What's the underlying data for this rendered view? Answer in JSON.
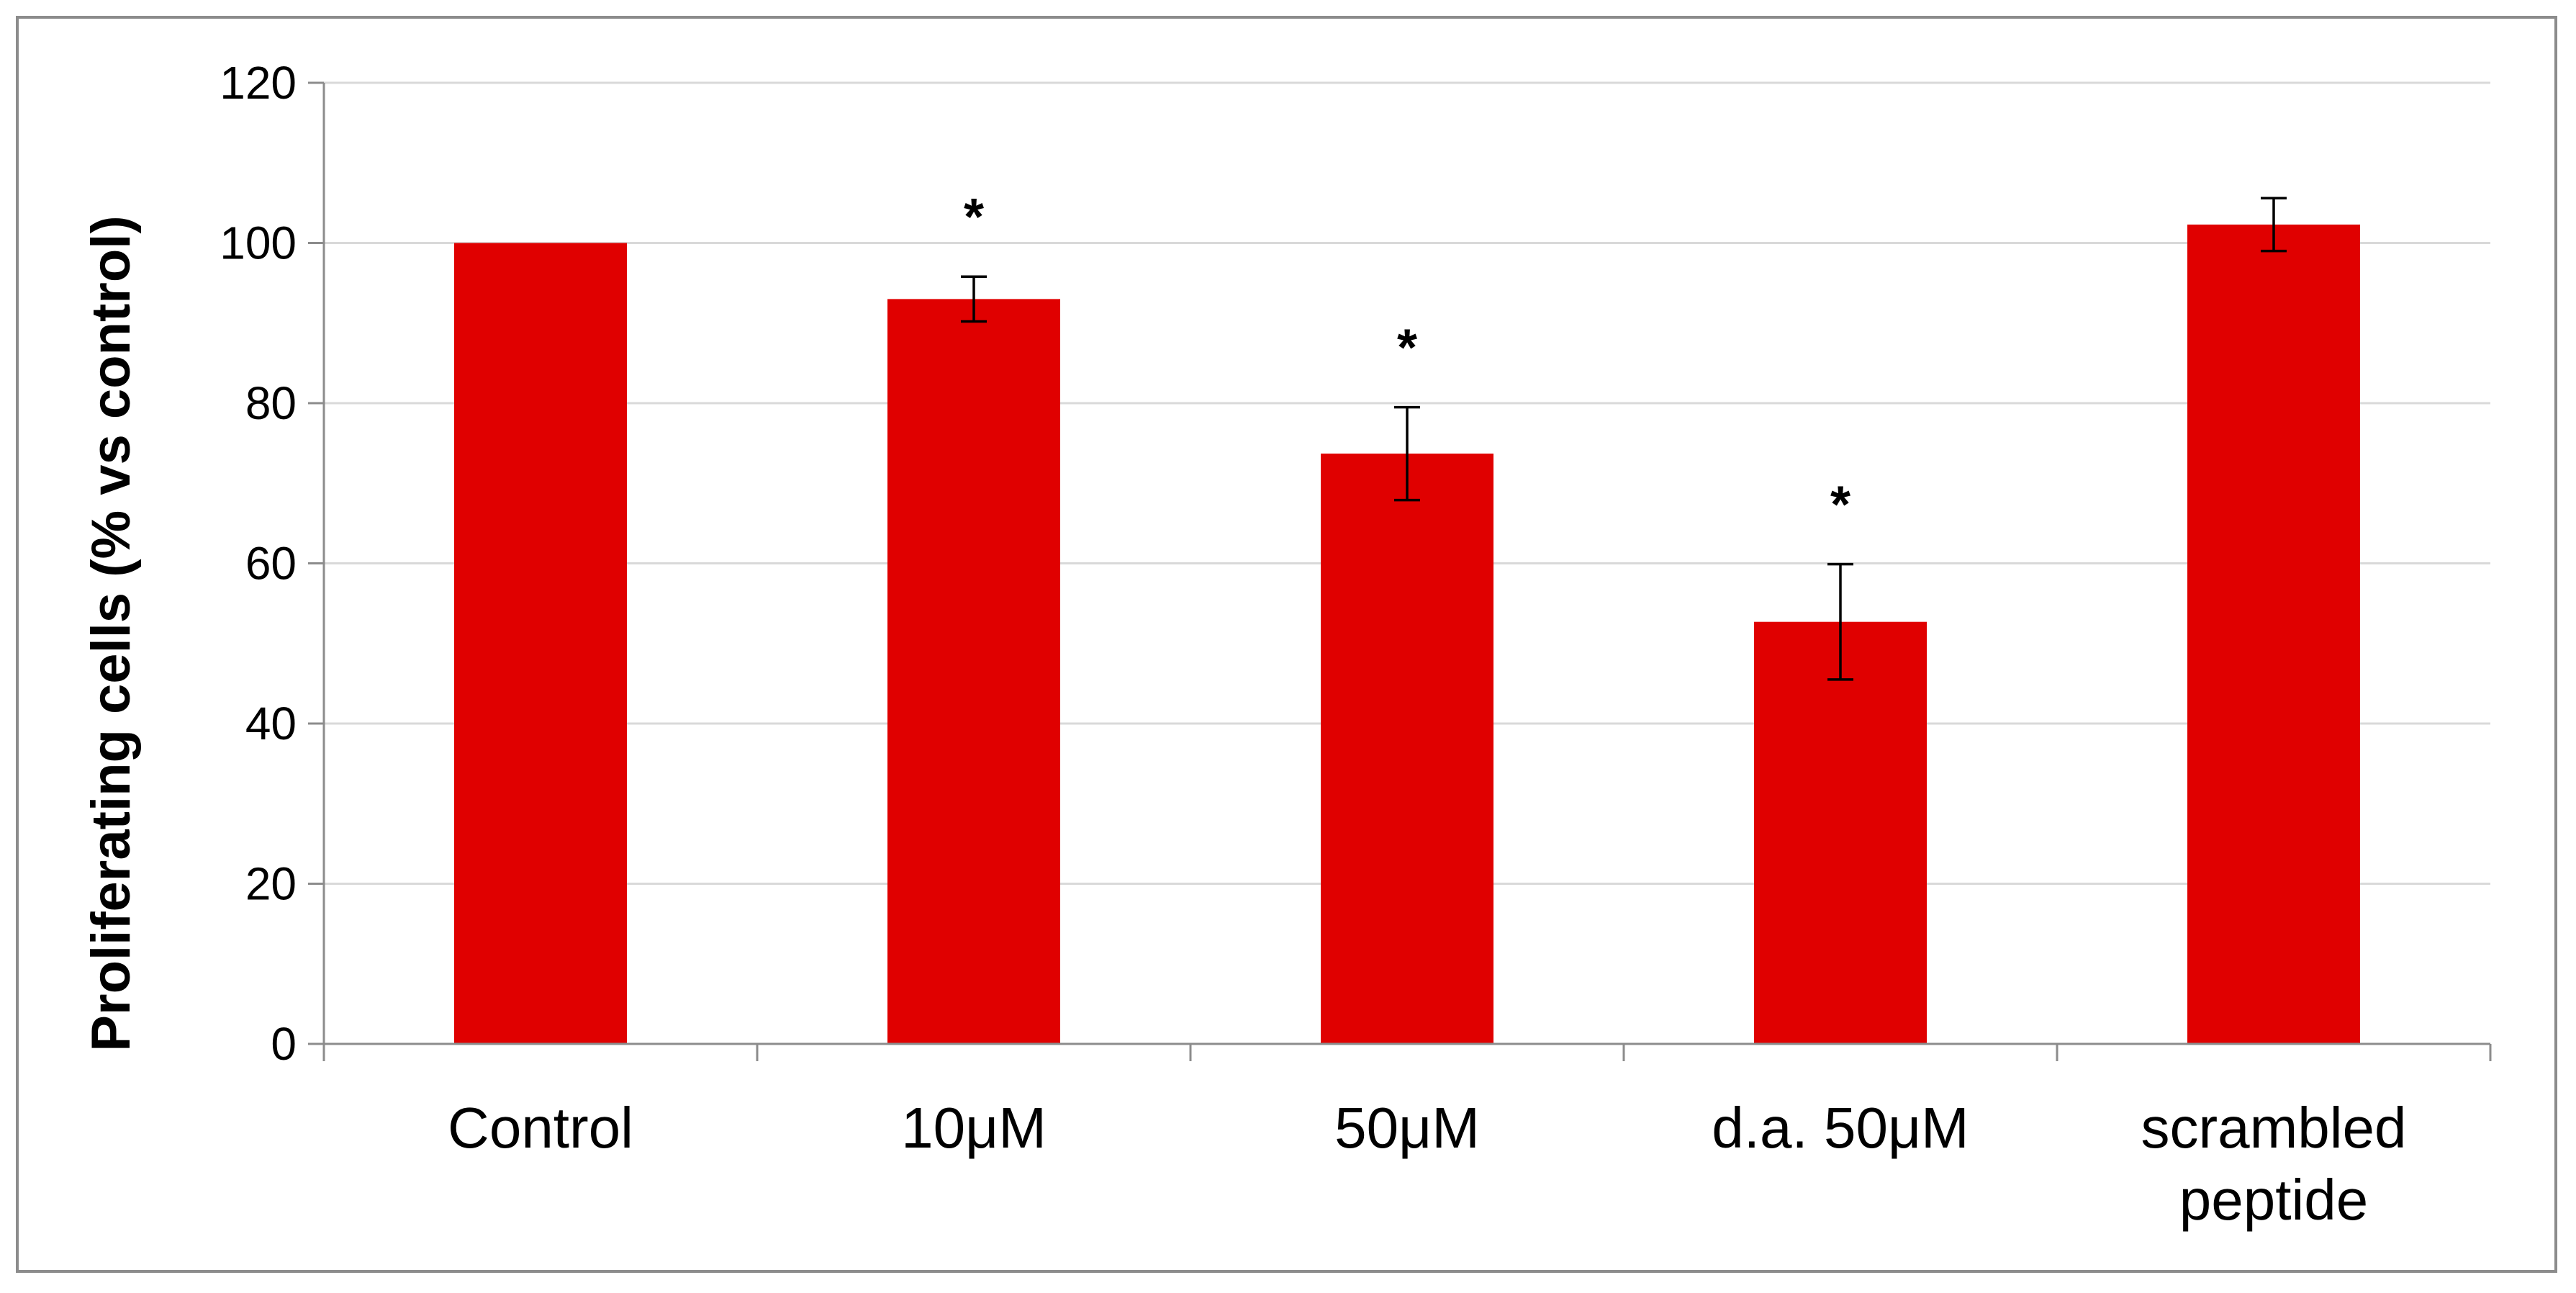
{
  "chart_data": {
    "type": "bar",
    "title": "",
    "xlabel": "",
    "ylabel": "Proliferating cells (% vs control)",
    "ylim": [
      0,
      120
    ],
    "yticks": [
      0,
      20,
      40,
      60,
      80,
      100,
      120
    ],
    "grid": true,
    "legend": "none",
    "bar_color": "#e00000",
    "categories": [
      [
        "Control"
      ],
      [
        "10μM"
      ],
      [
        "50μM"
      ],
      [
        "d.a. 50μM"
      ],
      [
        "scrambled",
        "peptide"
      ]
    ],
    "values": [
      100,
      93,
      73.7,
      52.7,
      102.3
    ],
    "errors": [
      0,
      2.8,
      5.8,
      7.2,
      3.3
    ],
    "annotations": [
      "",
      "*",
      "*",
      "*",
      ""
    ]
  }
}
